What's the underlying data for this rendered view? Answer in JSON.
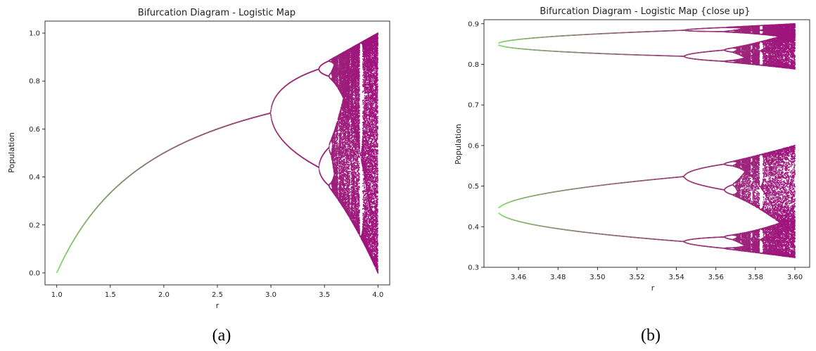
{
  "captions": [
    "(a)",
    "(b)"
  ],
  "colors": {
    "early": "#7ee86c",
    "late": "#a0117d",
    "axis": "#000000",
    "text": "#222222"
  },
  "chart_data": [
    {
      "type": "scatter",
      "title": "Bifurcation Diagram - Logistic Map",
      "xlabel": "r",
      "ylabel": "Population",
      "xlim": [
        0.89,
        4.11
      ],
      "ylim": [
        -0.05,
        1.05
      ],
      "xticks": [
        1.0,
        1.5,
        2.0,
        2.5,
        3.0,
        3.5,
        4.0
      ],
      "xtick_labels": [
        "1.0",
        "1.5",
        "2.0",
        "2.5",
        "3.0",
        "3.5",
        "4.0"
      ],
      "yticks": [
        0.0,
        0.2,
        0.4,
        0.6,
        0.8,
        1.0
      ],
      "ytick_labels": [
        "0.0",
        "0.2",
        "0.4",
        "0.6",
        "0.8",
        "1.0"
      ],
      "r_range": [
        1.0,
        4.0
      ],
      "grid": false,
      "color_scale": [
        "#7ee86c",
        "#a0117d"
      ]
    },
    {
      "type": "scatter",
      "title": "Bifurcation Diagram - Logistic Map {close up}",
      "xlabel": "r",
      "ylabel": "Population",
      "xlim": [
        3.4425,
        3.6075
      ],
      "ylim": [
        0.3,
        0.91
      ],
      "xticks": [
        3.46,
        3.48,
        3.5,
        3.52,
        3.54,
        3.56,
        3.58,
        3.6
      ],
      "xtick_labels": [
        "3.46",
        "3.48",
        "3.50",
        "3.52",
        "3.54",
        "3.56",
        "3.58",
        "3.60"
      ],
      "yticks": [
        0.3,
        0.4,
        0.5,
        0.6,
        0.7,
        0.8,
        0.9
      ],
      "ytick_labels": [
        "0.3",
        "0.4",
        "0.5",
        "0.6",
        "0.7",
        "0.8",
        "0.9"
      ],
      "r_range": [
        3.45,
        3.6
      ],
      "grid": false,
      "color_scale": [
        "#7ee86c",
        "#a0117d"
      ]
    }
  ]
}
